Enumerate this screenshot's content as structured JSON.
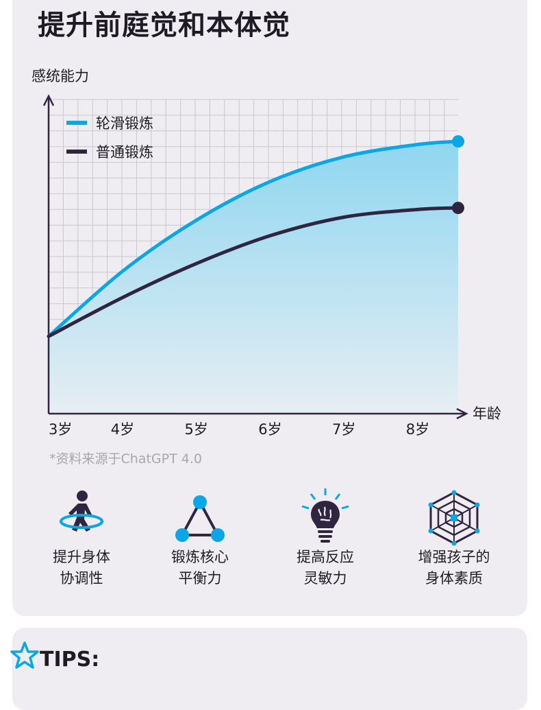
{
  "page": {
    "title": "提升前庭觉和本体觉",
    "source_note": "*资料来源于ChatGPT 4.0",
    "tips_label": "TIPS:"
  },
  "chart_data": {
    "type": "line",
    "ylabel": "感统能力",
    "xlabel": "年龄",
    "categories": [
      "3岁",
      "4岁",
      "5岁",
      "6岁",
      "7岁",
      "8岁"
    ],
    "x": [
      3,
      4,
      5,
      6,
      7,
      8,
      8.55
    ],
    "xlim": [
      3,
      8.55
    ],
    "ylim": [
      0,
      10
    ],
    "grid": true,
    "legend_position": "top-left",
    "series": [
      {
        "name": "轮滑锻炼",
        "color": "#0aa6e6",
        "values": [
          2.5,
          4.6,
          6.25,
          7.5,
          8.3,
          8.7,
          8.8
        ],
        "end_marker": true
      },
      {
        "name": "普通锻炼",
        "color": "#2f2540",
        "values": [
          2.5,
          3.75,
          4.85,
          5.75,
          6.35,
          6.6,
          6.65
        ],
        "end_marker": true
      }
    ],
    "fill_between": {
      "series": [
        "轮滑锻炼",
        "x-axis"
      ],
      "top_color": "#8fd6f0",
      "bottom_color": "#e6eef3"
    }
  },
  "features": [
    {
      "icon": "skating-person-icon",
      "line1": "提升身体",
      "line2": "协调性"
    },
    {
      "icon": "balance-triangle-icon",
      "line1": "锻炼核心",
      "line2": "平衡力"
    },
    {
      "icon": "brain-bulb-icon",
      "line1": "提高反应",
      "line2": "灵敏力"
    },
    {
      "icon": "radar-web-icon",
      "line1": "增强孩子的",
      "line2": "身体素质"
    }
  ],
  "colors": {
    "accent_blue": "#0aa6e6",
    "dark": "#2f2540",
    "card_bg": "#efedf1",
    "grid": "#c9c7cc"
  }
}
